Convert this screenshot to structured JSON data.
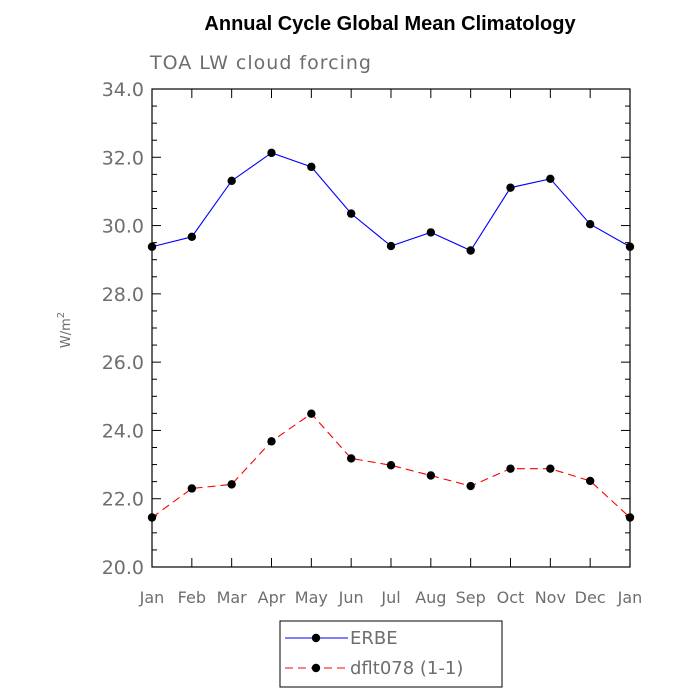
{
  "chart_data": {
    "type": "line",
    "title": "Annual Cycle Global Mean Climatology",
    "subtitle": "TOA LW cloud forcing",
    "xlabel": "",
    "ylabel": "W/m",
    "ylabel_superscript": "2",
    "categories": [
      "Jan",
      "Feb",
      "Mar",
      "Apr",
      "May",
      "Jun",
      "Jul",
      "Aug",
      "Sep",
      "Oct",
      "Nov",
      "Dec",
      "Jan"
    ],
    "ylim": [
      20.0,
      34.0
    ],
    "yticks": [
      "20.0",
      "22.0",
      "24.0",
      "26.0",
      "28.0",
      "30.0",
      "32.0",
      "34.0"
    ],
    "grid": false,
    "legend_position": "bottom",
    "series": [
      {
        "name": "ERBE",
        "color": "#0000ff",
        "dash": "solid",
        "marker": "circle",
        "values": [
          29.38,
          29.67,
          31.31,
          32.13,
          31.72,
          30.35,
          29.4,
          29.8,
          29.27,
          31.11,
          31.37,
          30.04,
          29.38
        ]
      },
      {
        "name": "dflt078 (1-1)",
        "color": "#ff0000",
        "dash": "dashed",
        "marker": "circle",
        "values": [
          21.45,
          22.3,
          22.42,
          23.68,
          24.49,
          23.18,
          22.98,
          22.68,
          22.37,
          22.88,
          22.88,
          22.52,
          21.45
        ]
      }
    ]
  }
}
